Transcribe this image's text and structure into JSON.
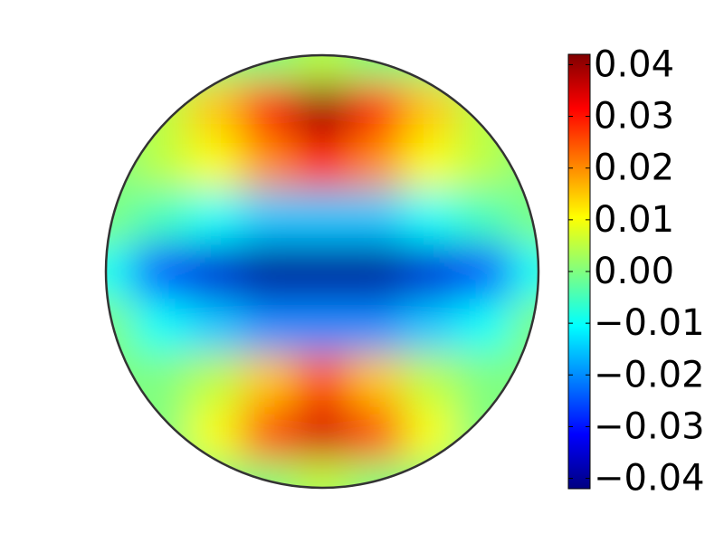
{
  "chart_data": {
    "type": "disk-heatmap",
    "colormap": "jet",
    "clim": [
      -0.042,
      0.042
    ],
    "x": [
      -1,
      -0.75,
      -0.5,
      -0.25,
      0,
      0.25,
      0.5,
      0.75,
      1
    ],
    "y": [
      1,
      0.75,
      0.5,
      0.25,
      0,
      -0.25,
      -0.5,
      -0.75,
      -1
    ],
    "z": [
      [
        0,
        0,
        0,
        0,
        0.005,
        0,
        0,
        0,
        0
      ],
      [
        0,
        0.005,
        0.015,
        0.03,
        0.04,
        0.03,
        0.015,
        0.005,
        0
      ],
      [
        0,
        0.005,
        0.01,
        0.02,
        0.03,
        0.02,
        0.01,
        0.005,
        0
      ],
      [
        0,
        -0.005,
        -0.01,
        -0.015,
        -0.015,
        -0.015,
        -0.01,
        -0.005,
        0
      ],
      [
        -0.01,
        -0.025,
        -0.035,
        -0.04,
        -0.04,
        -0.04,
        -0.035,
        -0.025,
        -0.01
      ],
      [
        0,
        -0.01,
        -0.015,
        -0.02,
        -0.02,
        -0.02,
        -0.015,
        -0.01,
        0
      ],
      [
        0,
        0,
        0.005,
        0.015,
        0.025,
        0.015,
        0.005,
        0,
        0
      ],
      [
        0,
        0,
        0.01,
        0.025,
        0.035,
        0.025,
        0.01,
        0,
        0
      ],
      [
        0,
        0,
        0,
        0,
        0.005,
        0,
        0,
        0,
        0
      ]
    ],
    "colorbar_ticks": [
      {
        "value": 0.04,
        "label": "0.04"
      },
      {
        "value": 0.03,
        "label": "0.03"
      },
      {
        "value": 0.02,
        "label": "0.02"
      },
      {
        "value": 0.01,
        "label": "0.01"
      },
      {
        "value": 0,
        "label": "0.00"
      },
      {
        "value": -0.01,
        "label": "−0.01"
      },
      {
        "value": -0.02,
        "label": "−0.02"
      },
      {
        "value": -0.03,
        "label": "−0.03"
      },
      {
        "value": -0.04,
        "label": "−0.04"
      }
    ]
  }
}
